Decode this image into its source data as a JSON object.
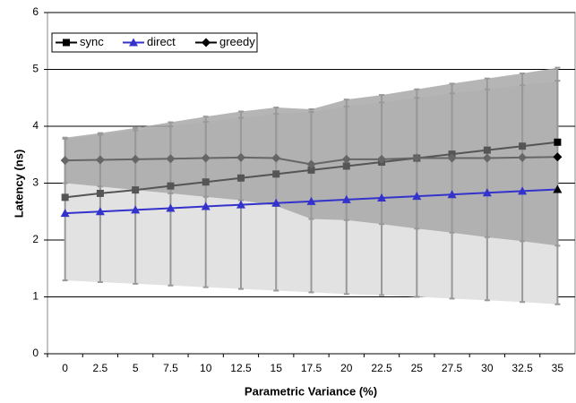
{
  "chart_data": {
    "type": "line",
    "x_label": "Parametric Variance (%)",
    "y_label": "Latency (ns)",
    "categories": [
      "0",
      "2.5",
      "5",
      "7.5",
      "10",
      "12.5",
      "15",
      "17.5",
      "20",
      "22.5",
      "25",
      "27.5",
      "30",
      "32.5",
      "35"
    ],
    "ylim": [
      0,
      6
    ],
    "yticks": [
      0,
      1,
      2,
      3,
      4,
      5,
      6
    ],
    "grid": true,
    "bands": [
      {
        "color": "#e2e2e2",
        "upper": [
          3.78,
          3.85,
          3.93,
          4.0,
          4.08,
          4.15,
          4.22,
          4.25,
          4.35,
          4.42,
          4.5,
          4.58,
          4.65,
          4.72,
          4.8
        ],
        "lower": [
          1.29,
          1.26,
          1.23,
          1.2,
          1.17,
          1.14,
          1.11,
          1.08,
          1.05,
          1.03,
          1.0,
          0.97,
          0.94,
          0.91,
          0.87
        ]
      },
      {
        "color": "#a8a8a8",
        "upper": [
          3.8,
          3.88,
          3.97,
          4.07,
          4.17,
          4.26,
          4.33,
          4.3,
          4.47,
          4.55,
          4.65,
          4.75,
          4.84,
          4.93,
          5.03
        ],
        "lower": [
          3.0,
          2.94,
          2.88,
          2.82,
          2.76,
          2.7,
          2.6,
          2.37,
          2.35,
          2.28,
          2.2,
          2.13,
          2.05,
          1.98,
          1.9
        ]
      }
    ],
    "series": [
      {
        "name": "sync",
        "color": "#555555",
        "marker": "square",
        "values": [
          2.75,
          2.82,
          2.88,
          2.95,
          3.02,
          3.09,
          3.16,
          3.23,
          3.3,
          3.37,
          3.44,
          3.51,
          3.58,
          3.65,
          3.72
        ]
      },
      {
        "name": "direct",
        "color": "#3333cc",
        "marker": "triangle",
        "values": [
          2.47,
          2.5,
          2.53,
          2.56,
          2.59,
          2.62,
          2.65,
          2.68,
          2.71,
          2.74,
          2.77,
          2.8,
          2.83,
          2.86,
          2.89
        ]
      },
      {
        "name": "greedy",
        "color": "#666666",
        "marker": "diamond",
        "values": [
          3.4,
          3.41,
          3.42,
          3.43,
          3.44,
          3.45,
          3.44,
          3.33,
          3.42,
          3.42,
          3.44,
          3.44,
          3.44,
          3.45,
          3.46
        ]
      }
    ]
  }
}
